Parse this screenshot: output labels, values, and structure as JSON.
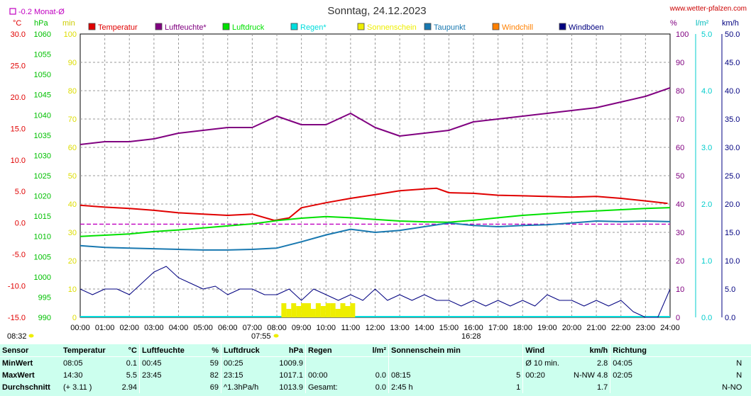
{
  "header": {
    "title": "Sonntag, 24.12.2023",
    "site": "www.wetter-pfalzen.com",
    "month_avg": "-0.2 Monat-Ø",
    "unit_c": "°C",
    "unit_hpa": "hPa",
    "unit_min": "min",
    "unit_pct": "%",
    "unit_lm2": "l/m²",
    "unit_kmh": "km/h"
  },
  "colors": {
    "temp": "#e00000",
    "hum": "#800080",
    "press": "#00e000",
    "rain": "#00dddd",
    "sun": "#eeee00",
    "dew": "#1878b0",
    "chill": "#ff8000",
    "gust": "#000080",
    "bg": "#ccffee"
  },
  "legend": [
    {
      "label": "Temperatur",
      "color": "#e00000"
    },
    {
      "label": "Luftfeuchte*",
      "color": "#800080"
    },
    {
      "label": "Luftdruck",
      "color": "#00e000"
    },
    {
      "label": "Regen*",
      "color": "#00dddd"
    },
    {
      "label": "Sonnenschein",
      "color": "#eeee00"
    },
    {
      "label": "Taupunkt",
      "color": "#1878b0"
    },
    {
      "label": "Windchill",
      "color": "#ff8000"
    },
    {
      "label": "Windböen",
      "color": "#000080"
    }
  ],
  "markers": {
    "left_time": "08:32",
    "sunrise": "07:55",
    "sunset": "16:28"
  },
  "chart_data": {
    "type": "line",
    "x_ticks": [
      "00:00",
      "01:00",
      "02:00",
      "03:00",
      "04:00",
      "05:00",
      "06:00",
      "07:00",
      "08:00",
      "09:00",
      "10:00",
      "11:00",
      "12:00",
      "13:00",
      "14:00",
      "15:00",
      "16:00",
      "17:00",
      "18:00",
      "19:00",
      "20:00",
      "21:00",
      "22:00",
      "23:00",
      "24:00"
    ],
    "axes": {
      "temp_c": {
        "ticks": [
          "30.0",
          "25.0",
          "20.0",
          "15.0",
          "10.0",
          "5.0",
          "0.0",
          "-5.0",
          "-10.0",
          "-15.0"
        ],
        "range": [
          -15,
          30
        ]
      },
      "pressure_hpa": {
        "ticks": [
          "1060",
          "1055",
          "1050",
          "1045",
          "1040",
          "1035",
          "1030",
          "1025",
          "1020",
          "1015",
          "1010",
          "1005",
          "1000",
          "995",
          "990"
        ],
        "range": [
          990,
          1060
        ]
      },
      "sun_min": {
        "ticks": [
          "100",
          "90",
          "80",
          "70",
          "60",
          "50",
          "40",
          "30",
          "20",
          "10",
          "0"
        ],
        "range": [
          0,
          100
        ]
      },
      "humidity_pct": {
        "ticks": [
          "100",
          "90",
          "80",
          "70",
          "60",
          "50",
          "40",
          "30",
          "20",
          "10",
          "0"
        ],
        "range": [
          0,
          100
        ]
      },
      "rain_lm2": {
        "ticks": [
          "5.0",
          "4.0",
          "3.0",
          "2.0",
          "1.0",
          "0.0"
        ],
        "range": [
          0,
          5
        ]
      },
      "wind_kmh": {
        "ticks": [
          "50.0",
          "45.0",
          "40.0",
          "35.0",
          "30.0",
          "25.0",
          "20.0",
          "15.0",
          "10.0",
          "5.0",
          "0.0"
        ],
        "range": [
          0,
          50
        ]
      }
    },
    "month_avg_temp": -0.2,
    "series": [
      {
        "name": "Temperatur",
        "axis": "temp_c",
        "x": [
          0,
          1,
          2,
          3,
          4,
          5,
          6,
          7,
          7.9,
          8.5,
          9,
          10,
          11,
          12,
          13,
          14,
          14.5,
          15,
          16,
          17,
          18,
          19,
          20,
          21,
          22,
          23,
          23.9
        ],
        "values": [
          2.8,
          2.5,
          2.3,
          2.0,
          1.6,
          1.4,
          1.2,
          1.4,
          0.4,
          0.8,
          2.4,
          3.2,
          3.9,
          4.5,
          5.1,
          5.4,
          5.5,
          4.8,
          4.7,
          4.4,
          4.3,
          4.2,
          4.1,
          4.2,
          3.9,
          3.5,
          3.1
        ]
      },
      {
        "name": "Luftfeuchte*",
        "axis": "humidity_pct",
        "x": [
          0,
          1,
          2,
          3,
          4,
          5,
          6,
          7,
          8,
          9,
          10,
          11,
          12,
          13,
          14,
          15,
          16,
          17,
          18,
          19,
          20,
          21,
          22,
          23,
          24
        ],
        "values": [
          61,
          62,
          62,
          63,
          65,
          66,
          67,
          67,
          71,
          68,
          68,
          72,
          67,
          64,
          65,
          66,
          69,
          70,
          71,
          72,
          73,
          74,
          76,
          78,
          81
        ]
      },
      {
        "name": "Luftdruck",
        "axis": "pressure_hpa",
        "x": [
          0,
          1,
          2,
          3,
          4,
          5,
          6,
          7,
          8,
          9,
          10,
          11,
          12,
          13,
          14,
          15,
          16,
          17,
          18,
          19,
          20,
          21,
          22,
          23,
          24
        ],
        "values": [
          1010.0,
          1010.3,
          1010.6,
          1011.2,
          1011.6,
          1012.1,
          1012.6,
          1013.1,
          1013.9,
          1014.5,
          1014.9,
          1014.6,
          1014.2,
          1013.8,
          1013.6,
          1013.5,
          1014.0,
          1014.6,
          1015.2,
          1015.6,
          1016.0,
          1016.3,
          1016.6,
          1016.9,
          1017.1
        ]
      },
      {
        "name": "Taupunkt",
        "axis": "temp_c",
        "x": [
          0,
          1,
          2,
          3,
          4,
          5,
          6,
          7,
          8,
          9,
          10,
          11,
          12,
          13,
          14,
          15,
          16,
          17,
          18,
          19,
          20,
          21,
          22,
          23,
          24
        ],
        "values": [
          -3.6,
          -3.9,
          -4.0,
          -4.1,
          -4.2,
          -4.3,
          -4.3,
          -4.2,
          -4.0,
          -3.0,
          -1.9,
          -1.0,
          -1.5,
          -1.2,
          -0.6,
          0.0,
          -0.4,
          -0.6,
          -0.4,
          -0.3,
          0.0,
          0.3,
          0.2,
          0.3,
          0.2
        ]
      },
      {
        "name": "Windböen",
        "axis": "wind_kmh",
        "x": [
          0,
          0.5,
          1,
          1.5,
          2,
          2.5,
          3,
          3.5,
          4,
          4.5,
          5,
          5.5,
          6,
          6.5,
          7,
          7.5,
          8,
          8.5,
          9,
          9.5,
          10,
          10.5,
          11,
          11.5,
          12,
          12.5,
          13,
          13.5,
          14,
          14.5,
          15,
          15.5,
          16,
          16.5,
          17,
          17.5,
          18,
          18.5,
          19,
          19.5,
          20,
          20.5,
          21,
          21.5,
          22,
          22.5,
          23,
          23.5,
          24
        ],
        "values": [
          5.0,
          4.0,
          5.0,
          5.0,
          4.0,
          6.0,
          8.0,
          9.0,
          7.0,
          6.0,
          5.0,
          5.5,
          4.0,
          5.0,
          5.0,
          4.0,
          4.0,
          5.0,
          3.0,
          5.0,
          4.0,
          3.0,
          4.0,
          3.0,
          5.0,
          3.0,
          4.0,
          3.0,
          4.0,
          3.0,
          3.0,
          2.0,
          3.0,
          2.0,
          3.0,
          2.0,
          3.0,
          2.0,
          4.0,
          3.0,
          3.0,
          2.0,
          3.0,
          2.0,
          3.0,
          1.0,
          0.0,
          0.0,
          5.0
        ]
      },
      {
        "name": "Sonnenschein",
        "axis": "sun_min",
        "x": [
          8.3,
          8.5,
          8.7,
          8.9,
          9.1,
          9.3,
          9.5,
          9.7,
          9.9,
          10.1,
          10.3,
          10.5,
          10.7,
          10.9,
          11.1
        ],
        "values": [
          5,
          3,
          5,
          4,
          5,
          5,
          3,
          5,
          4,
          5,
          5,
          3,
          5,
          4,
          5
        ]
      }
    ]
  },
  "stats": {
    "header": [
      "Sensor",
      "Temperatur",
      "°C",
      "Luftfeuchte",
      "%",
      "Luftdruck",
      "hPa",
      "Regen",
      "l/m²",
      "Sonnenschein min",
      "Wind",
      "km/h",
      "Richtung"
    ],
    "rows": [
      [
        "MinWert",
        "08:05",
        "0.1",
        "00:45",
        "59",
        "00:25",
        "1009.9",
        "",
        "",
        "",
        "Ø 10 min.",
        "2.8",
        "04:05",
        "N"
      ],
      [
        "MaxWert",
        "14:30",
        "5.5",
        "23:45",
        "82",
        "23:15",
        "1017.1",
        "00:00",
        "0.0",
        "08:15",
        "5",
        "00:20",
        "N-NW 4.8",
        "02:05",
        "N"
      ],
      [
        "Durchschnitt",
        "(+ 3.11 )",
        "2.94",
        "",
        "69",
        "^1.3hPa/h",
        "1013.9",
        "Gesamt:",
        "0.0",
        "2:45 h",
        "1",
        "",
        "1.7",
        "",
        "N-NO"
      ]
    ]
  }
}
